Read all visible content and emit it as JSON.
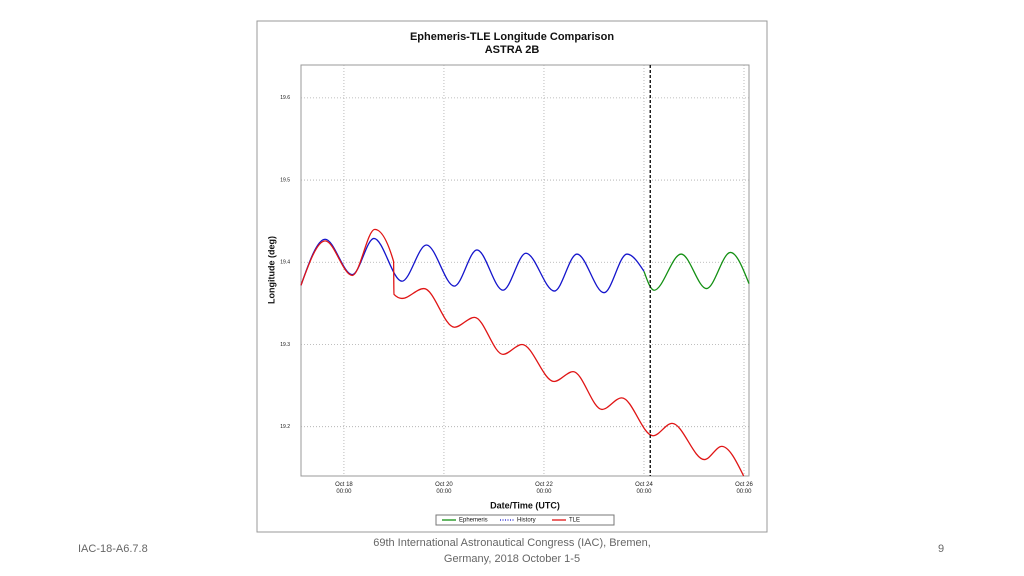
{
  "chart_data": {
    "type": "line",
    "title": "Ephemeris-TLE Longitude Comparison",
    "subtitle": "ASTRA 2B",
    "ylabel": "Longitude (deg)",
    "xlabel": "Date/Time (UTC)",
    "xlim": [
      "Oct 17 03:24",
      "Oct 26 02:24"
    ],
    "xticks": [
      {
        "value": "Oct 18 00:00",
        "label": "Oct 18 00:00"
      },
      {
        "value": "Oct 20 00:00",
        "label": "Oct 20 00:00"
      },
      {
        "value": "Oct 22 00:00",
        "label": "Oct 22 00:00"
      },
      {
        "value": "Oct 24 00:00",
        "label": "Oct 24 00:00"
      },
      {
        "value": "Oct 26 00:00",
        "label": "Oct 26 00:00"
      }
    ],
    "ylim": [
      19.14,
      19.64
    ],
    "yticks": [
      19.2,
      19.3,
      19.4,
      19.5,
      19.6
    ],
    "grid": true,
    "marker_x": "Oct 24 03:00",
    "series": [
      {
        "name": "Ephemeris",
        "color": "#139013",
        "x": [
          "Oct 24 00:00",
          "Oct 24 04:50",
          "Oct 24 17:50",
          "Oct 25 06:00",
          "Oct 25 17:30",
          "Oct 26 02:24"
        ],
        "values": [
          19.389,
          19.366,
          19.41,
          19.368,
          19.412,
          19.374
        ]
      },
      {
        "name": "History",
        "color": "#1515cc",
        "legend_dash": "dotted",
        "x": [
          "Oct 17 03:24",
          "Oct 17 15:00",
          "Oct 18 04:00",
          "Oct 18 14:24",
          "Oct 19 03:50",
          "Oct 19 15:36",
          "Oct 20 05:00",
          "Oct 20 15:50",
          "Oct 21 04:20",
          "Oct 21 15:20",
          "Oct 22 05:00",
          "Oct 22 15:50",
          "Oct 23 04:50",
          "Oct 23 15:50",
          "Oct 24 00:00"
        ],
        "values": [
          19.372,
          19.428,
          19.385,
          19.429,
          19.377,
          19.421,
          19.371,
          19.415,
          19.366,
          19.411,
          19.365,
          19.41,
          19.363,
          19.41,
          19.389
        ]
      },
      {
        "name": "TLE",
        "color": "#e01515",
        "x": [
          "Oct 17 03:24",
          "Oct 17 15:00",
          "Oct 18 04:00",
          "Oct 18 14:50",
          "Oct 18 23:50",
          "Oct 19 00:00",
          "Oct 19 03:50",
          "Oct 19 14:24",
          "Oct 20 05:00",
          "Oct 20 14:40",
          "Oct 21 04:20",
          "Oct 21 13:30",
          "Oct 22 04:50",
          "Oct 22 14:00",
          "Oct 23 03:50",
          "Oct 23 13:20",
          "Oct 24 04:20",
          "Oct 24 13:30",
          "Oct 25 05:00",
          "Oct 25 13:20",
          "Oct 25 23:50"
        ],
        "values": [
          19.372,
          19.426,
          19.384,
          19.44,
          19.401,
          19.361,
          19.356,
          19.368,
          19.321,
          19.333,
          19.288,
          19.3,
          19.255,
          19.267,
          19.221,
          19.235,
          19.189,
          19.204,
          19.16,
          19.176,
          19.14
        ]
      }
    ]
  },
  "footer": {
    "left": "IAC-18-A6.7.8",
    "center": "69th International Astronautical Congress (IAC), Bremen, Germany, 2018 October 1-5",
    "page": "9"
  }
}
